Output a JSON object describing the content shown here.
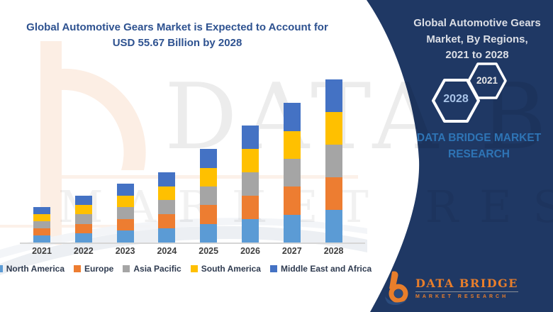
{
  "header": {
    "title": "Global Automotive Gears Market is Expected to Account for\nUSD 55.67 Billion by 2028"
  },
  "chart_data": {
    "type": "bar",
    "stacked": true,
    "title": "Global Automotive Gears Market is Expected to Account for USD 55.67 Billion by 2028",
    "unit": "USD Billion",
    "categories": [
      "2021",
      "2022",
      "2023",
      "2024",
      "2025",
      "2026",
      "2027",
      "2028"
    ],
    "series": [
      {
        "name": "North America",
        "color": "#5B9BD5",
        "values": [
          2.42,
          3.2,
          4.02,
          4.8,
          6.38,
          7.98,
          9.52,
          11.13
        ]
      },
      {
        "name": "Europe",
        "color": "#ED7D31",
        "values": [
          2.42,
          3.2,
          4.02,
          4.8,
          6.38,
          7.98,
          9.52,
          11.13
        ]
      },
      {
        "name": "Asia Pacific",
        "color": "#A5A5A5",
        "values": [
          2.42,
          3.2,
          4.02,
          4.8,
          6.38,
          7.98,
          9.52,
          11.13
        ]
      },
      {
        "name": "South America",
        "color": "#FFC000",
        "values": [
          2.42,
          3.2,
          4.02,
          4.8,
          6.38,
          7.98,
          9.52,
          11.13
        ]
      },
      {
        "name": "Middle East and Africa",
        "color": "#4472C4",
        "values": [
          2.42,
          3.2,
          4.02,
          4.8,
          6.38,
          7.98,
          9.52,
          11.13
        ]
      }
    ],
    "totals": [
      12.1,
      16.0,
      20.1,
      24.0,
      31.9,
      39.9,
      47.6,
      55.67
    ],
    "ylim": [
      0,
      60
    ],
    "grid": false,
    "legend_position": "bottom",
    "xlabel": "",
    "ylabel": ""
  },
  "watermark": {
    "line1": "DATA BRIDGE",
    "line2": "MARKET RESEARCH"
  },
  "panel": {
    "title": "Global Automotive Gears\nMarket, By Regions,\n2021 to 2028",
    "hex_top": "2021",
    "hex_bottom": "2028",
    "brand_text": "DATA BRIDGE MARKET\nRESEARCH"
  },
  "logo": {
    "name": "DATA BRIDGE",
    "subtitle": "MARKET RESEARCH"
  },
  "colors": {
    "panel_navy": "#1F3864",
    "title_blue": "#2E5290",
    "brand_blue": "#2E74B5",
    "logo_orange": "#E87E2B",
    "axis_line": "#D6D6D6",
    "watermark_peach": "#F9DCC8"
  }
}
